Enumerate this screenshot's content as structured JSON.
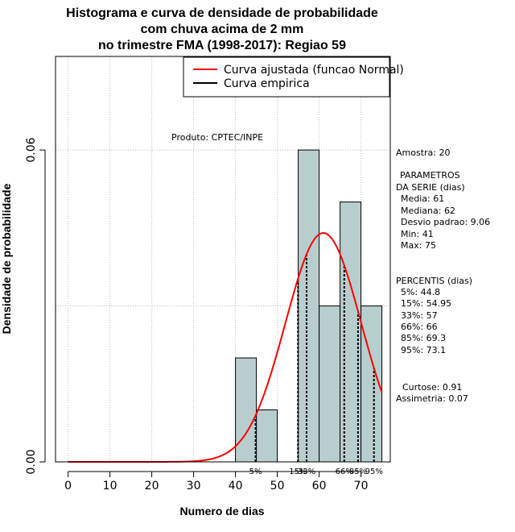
{
  "chart_data": {
    "type": "bar",
    "title_lines": [
      "Histograma e curva de densidade de probabilidade",
      "com chuva acima de 2 mm",
      "no trimestre FMA (1998-2017): Regiao 59"
    ],
    "xlabel": "Numero de dias",
    "ylabel": "Densidade de probabilidade",
    "xlim": [
      -3,
      77
    ],
    "ylim": [
      0,
      0.078
    ],
    "x_ticks": [
      0,
      10,
      20,
      30,
      40,
      50,
      60,
      70
    ],
    "y_ticks": [
      {
        "value": 0.0,
        "label": "0.00"
      },
      {
        "value": 0.06,
        "label": "0.06"
      }
    ],
    "grid": true,
    "h_grid_values": [
      0.03,
      0.06,
      0.09
    ],
    "bins": [
      {
        "start": 40,
        "end": 45,
        "density": 0.02
      },
      {
        "start": 45,
        "end": 50,
        "density": 0.01
      },
      {
        "start": 55,
        "end": 60,
        "density": 0.06
      },
      {
        "start": 60,
        "end": 65,
        "density": 0.03
      },
      {
        "start": 65,
        "end": 70,
        "density": 0.05
      },
      {
        "start": 70,
        "end": 75,
        "density": 0.03
      }
    ],
    "series": [
      {
        "name": "Curva ajustada (funcao Normal)",
        "color": "#ff0000",
        "distribution": "normal",
        "mean": 61,
        "sd": 9.06,
        "x_from": 0,
        "x_to": 75
      },
      {
        "name": "Curva empirica",
        "color": "#000000"
      }
    ],
    "percentile_markers": [
      {
        "label": "5%",
        "value": 44.8
      },
      {
        "label": "15%",
        "value": 54.95
      },
      {
        "label": "33%",
        "value": 57
      },
      {
        "label": "66%",
        "value": 66
      },
      {
        "label": "85%",
        "value": 69.3
      },
      {
        "label": "95%",
        "value": 73.1
      }
    ],
    "legend_position": "top-right",
    "product_label": "Produto: CPTEC/INPE",
    "stats": {
      "amostra": "Amostra: 20",
      "parametros_title_1": "PARAMETROS",
      "parametros_title_2": "DA SERIE (dias)",
      "media": "Media: 61",
      "mediana": "Mediana: 62",
      "desvio": "Desvio padrao: 9.06",
      "min": "Min: 41",
      "max": "Max: 75",
      "percentis_title": "PERCENTIS (dias)",
      "p5": "5%: 44.8",
      "p15": "15%: 54.95",
      "p33": "33%: 57",
      "p66": "66%: 66",
      "p85": "85%: 69.3",
      "p95": "95%: 73.1",
      "curtose": "Curtose: 0.91",
      "assimetria": "Assimetria: 0.07"
    },
    "colors": {
      "bar_fill": "#b8cece",
      "bar_stroke": "#000000",
      "grid": "#bbbbbb"
    }
  }
}
